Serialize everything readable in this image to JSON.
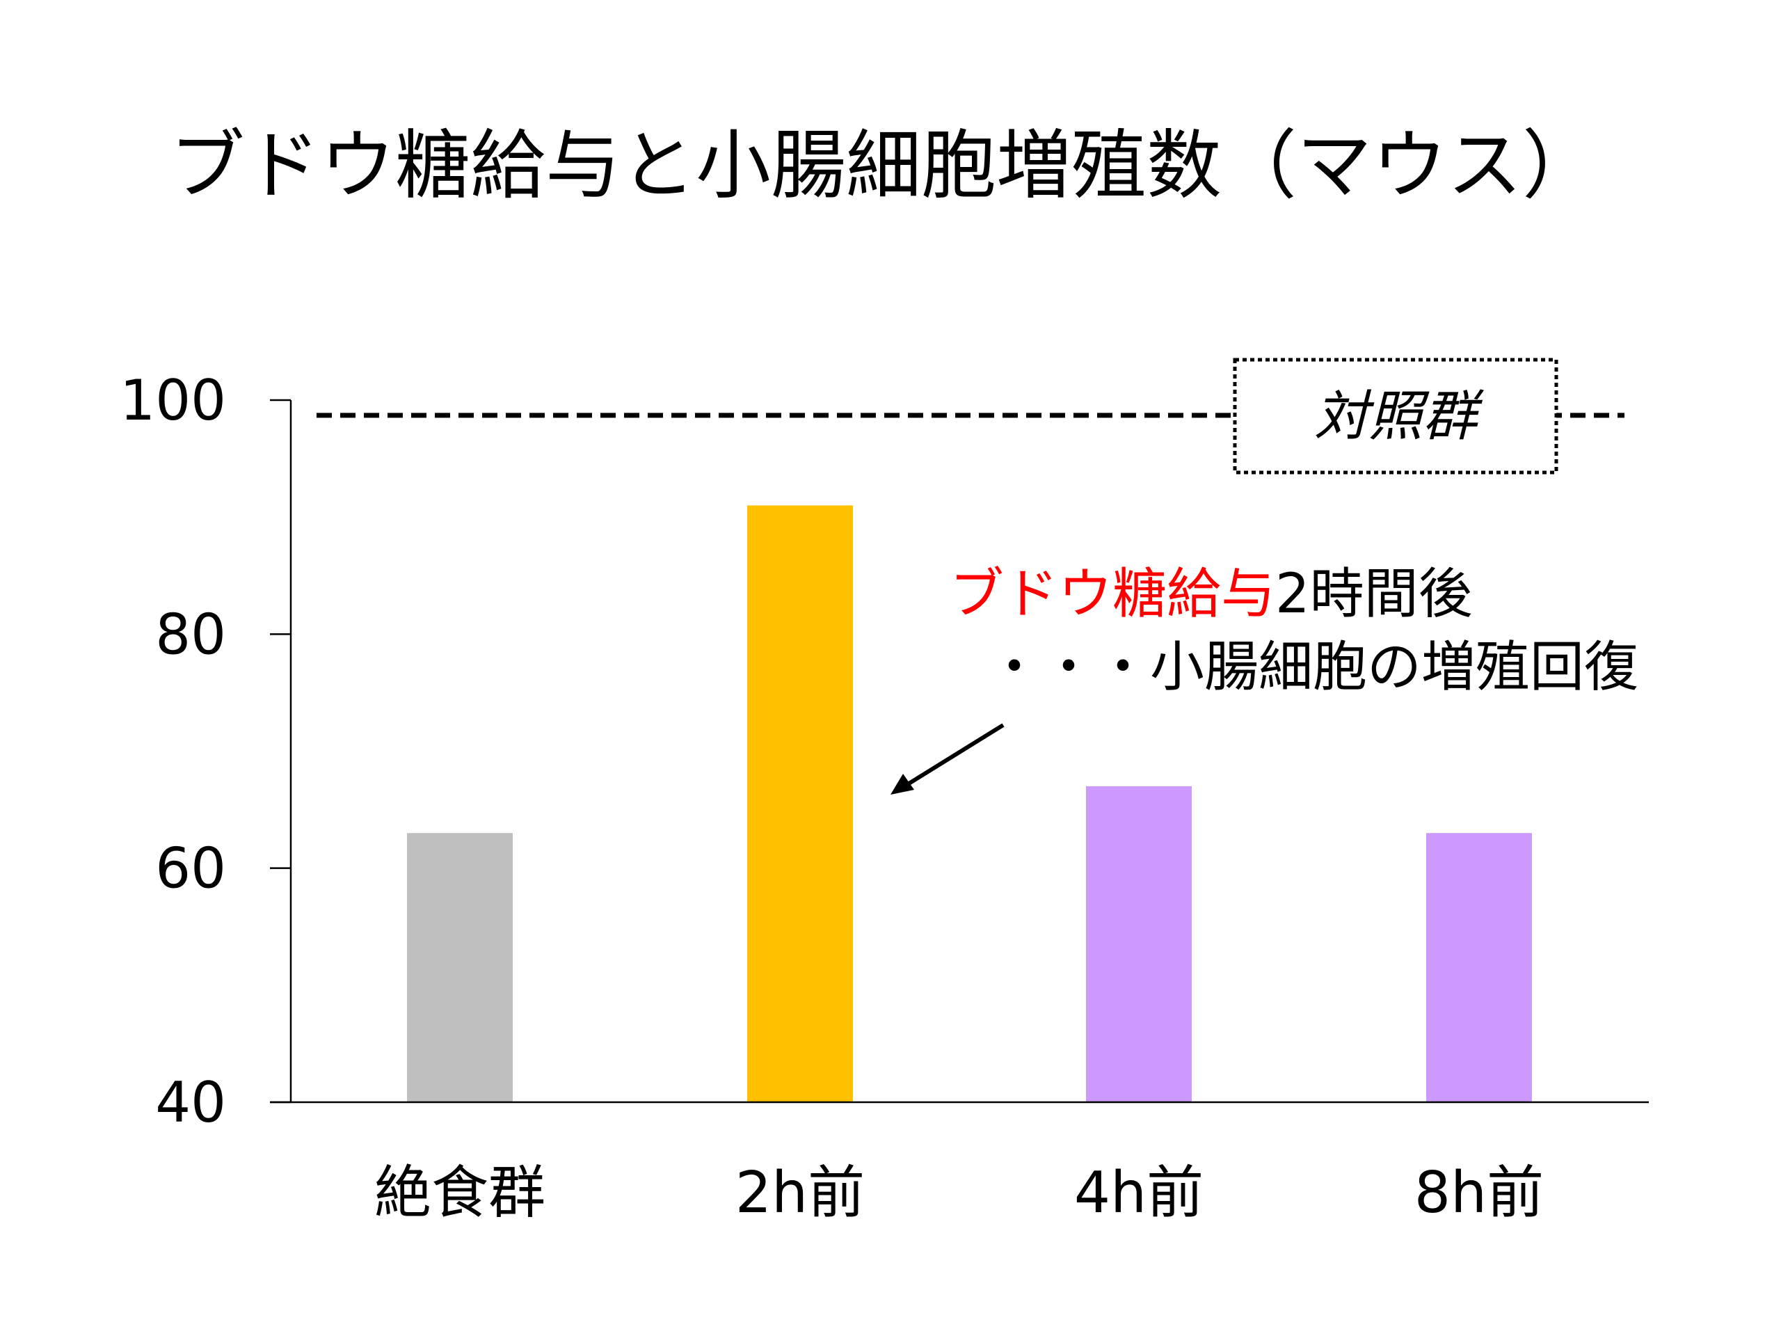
{
  "chart_data": {
    "type": "bar",
    "title": "ブドウ糖給与と小腸細胞増殖数（マウス）",
    "xlabel": "",
    "ylabel": "",
    "ylim": [
      40,
      100
    ],
    "yticks": [
      "40",
      "60",
      "80",
      "100"
    ],
    "categories": [
      "絶食群",
      "2h前",
      "4h前",
      "8h前"
    ],
    "values": [
      63,
      91,
      67,
      63
    ],
    "colors": [
      "#BFBFBF",
      "#FFC000",
      "#CC99FF",
      "#CC99FF"
    ],
    "reference_line": {
      "label": "対照群",
      "value": 98.7
    },
    "annotation": {
      "red_part": "ブドウ糖給与",
      "black_part": "2時間後",
      "line2": "・・・小腸細胞の増殖回復",
      "red_color": "#FF0000"
    }
  }
}
